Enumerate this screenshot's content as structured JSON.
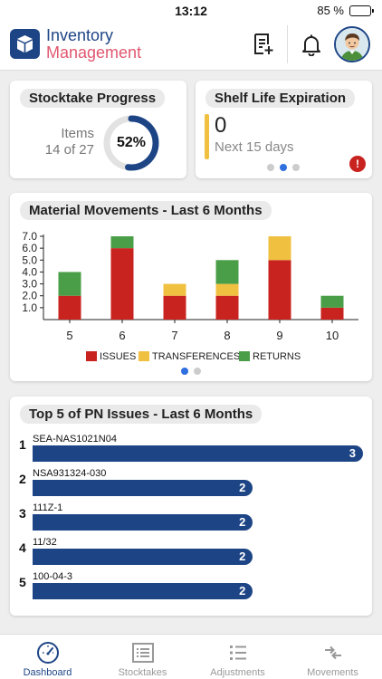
{
  "status": {
    "time": "13:12",
    "battery": "85 %",
    "battery_level": 0.85
  },
  "app": {
    "title_line1": "Inventory",
    "title_line2": "Management"
  },
  "stocktake": {
    "title": "Stocktake Progress",
    "items_label": "Items",
    "items_count": "14 of 27",
    "percent_label": "52%",
    "percent": 0.52
  },
  "shelf": {
    "title": "Shelf Life Expiration",
    "count": "0",
    "subtitle": "Next 15 days",
    "alert": "!"
  },
  "movements": {
    "title": "Material Movements - Last 6 Months"
  },
  "chart_data": {
    "type": "bar",
    "stacked": true,
    "categories": [
      "5",
      "6",
      "7",
      "8",
      "9",
      "10"
    ],
    "series": [
      {
        "name": "ISSUES",
        "color": "#c8231f",
        "values": [
          2,
          6,
          2,
          2,
          5,
          1
        ]
      },
      {
        "name": "TRANSFERENCES",
        "color": "#f0c040",
        "values": [
          0,
          0,
          1,
          1,
          2,
          0
        ]
      },
      {
        "name": "RETURNS",
        "color": "#4b9e48",
        "values": [
          2,
          1,
          0,
          2,
          0,
          1
        ]
      }
    ],
    "yticks": [
      "1.0",
      "2.0",
      "3.0",
      "4.0",
      "5.0",
      "6.0",
      "7.0"
    ],
    "ylim": [
      0,
      7
    ],
    "legend": "bottom",
    "grid": false
  },
  "top5": {
    "title": "Top 5 of PN Issues - Last 6 Months",
    "max": 3,
    "items": [
      {
        "rank": "1",
        "pn": "SEA-NAS1021N04",
        "value": "3"
      },
      {
        "rank": "2",
        "pn": "NSA931324-030",
        "value": "2"
      },
      {
        "rank": "3",
        "pn": "111Z-1",
        "value": "2"
      },
      {
        "rank": "4",
        "pn": "11/32",
        "value": "2"
      },
      {
        "rank": "5",
        "pn": "100-04-3",
        "value": "2"
      }
    ]
  },
  "tabs": [
    {
      "label": "Dashboard",
      "icon": "gauge-icon",
      "active": true
    },
    {
      "label": "Stocktakes",
      "icon": "list-box-icon",
      "active": false
    },
    {
      "label": "Adjustments",
      "icon": "bulleted-list-icon",
      "active": false
    },
    {
      "label": "Movements",
      "icon": "transfer-arrows-icon",
      "active": false
    }
  ]
}
